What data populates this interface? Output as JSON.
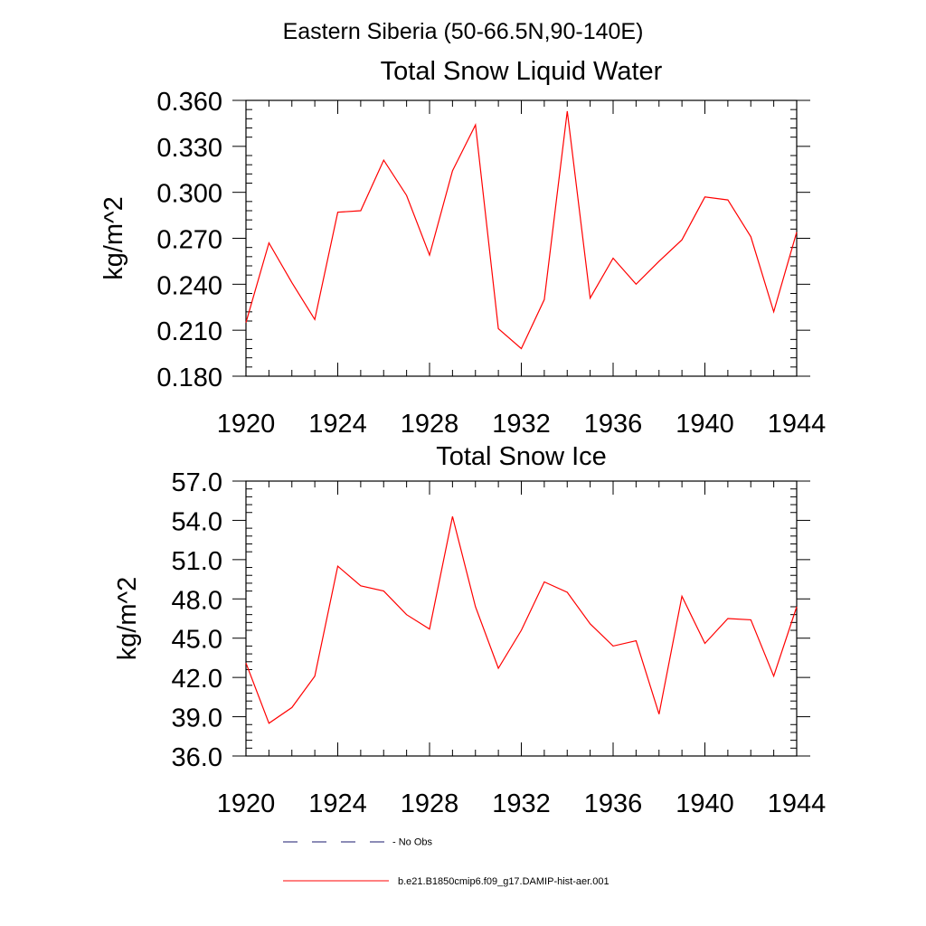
{
  "figure": {
    "title": "Eastern Siberia (50-66.5N,90-140E)"
  },
  "legend": {
    "items": [
      {
        "label": "- No Obs",
        "color": "#1a1a6e",
        "dashed": true
      },
      {
        "label": "b.e21.B1850cmip6.f09_g17.DAMIP-hist-aer.001",
        "color": "#ff0000",
        "dashed": false
      }
    ]
  },
  "chart_data": [
    {
      "type": "line",
      "title": "Total Snow Liquid Water",
      "xlabel": "",
      "ylabel": "kg/m^2",
      "xlim": [
        1920,
        1944
      ],
      "ylim": [
        0.18,
        0.36
      ],
      "xticks": [
        "1920",
        "1924",
        "1928",
        "1932",
        "1936",
        "1940",
        "1944"
      ],
      "yticks": [
        "0.180",
        "0.210",
        "0.240",
        "0.270",
        "0.300",
        "0.330",
        "0.360"
      ],
      "grid": false,
      "x": [
        1920,
        1921,
        1922,
        1923,
        1924,
        1925,
        1926,
        1927,
        1928,
        1929,
        1930,
        1931,
        1932,
        1933,
        1934,
        1935,
        1936,
        1937,
        1938,
        1939,
        1940,
        1941,
        1942,
        1943,
        1944
      ],
      "series": [
        {
          "name": "b.e21.B1850cmip6.f09_g17.DAMIP-hist-aer.001",
          "color": "#ff0000",
          "values": [
            0.215,
            0.267,
            0.241,
            0.217,
            0.287,
            0.288,
            0.321,
            0.298,
            0.259,
            0.314,
            0.344,
            0.211,
            0.198,
            0.23,
            0.353,
            0.231,
            0.257,
            0.24,
            0.255,
            0.269,
            0.297,
            0.295,
            0.271,
            0.222,
            0.274
          ]
        }
      ]
    },
    {
      "type": "line",
      "title": "Total Snow Ice",
      "xlabel": "",
      "ylabel": "kg/m^2",
      "xlim": [
        1920,
        1944
      ],
      "ylim": [
        36.0,
        57.0
      ],
      "xticks": [
        "1920",
        "1924",
        "1928",
        "1932",
        "1936",
        "1940",
        "1944"
      ],
      "yticks": [
        "36.0",
        "39.0",
        "42.0",
        "45.0",
        "48.0",
        "51.0",
        "54.0",
        "57.0"
      ],
      "grid": false,
      "x": [
        1920,
        1921,
        1922,
        1923,
        1924,
        1925,
        1926,
        1927,
        1928,
        1929,
        1930,
        1931,
        1932,
        1933,
        1934,
        1935,
        1936,
        1937,
        1938,
        1939,
        1940,
        1941,
        1942,
        1943,
        1944
      ],
      "series": [
        {
          "name": "b.e21.B1850cmip6.f09_g17.DAMIP-hist-aer.001",
          "color": "#ff0000",
          "values": [
            43.1,
            38.5,
            39.7,
            42.1,
            50.5,
            49.0,
            48.6,
            46.8,
            45.7,
            54.3,
            47.4,
            42.7,
            45.6,
            49.3,
            48.5,
            46.1,
            44.4,
            44.8,
            39.2,
            48.2,
            44.6,
            46.5,
            46.4,
            42.1,
            47.4
          ]
        }
      ]
    }
  ]
}
